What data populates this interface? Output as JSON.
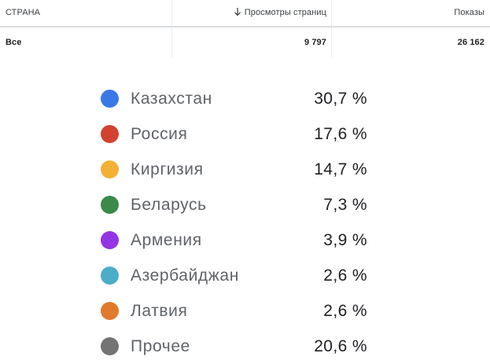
{
  "table": {
    "columns": {
      "country": "СТРАНА",
      "views": "Просмотры страниц",
      "impressions": "Показы"
    },
    "sort_icon": "arrow-down-icon",
    "total_row": {
      "country": "Все",
      "views": "9 797",
      "impressions": "26 162"
    }
  },
  "legend": {
    "items": [
      {
        "label": "Казахстан",
        "value": "30,7 %",
        "color": "#3b78e7"
      },
      {
        "label": "Россия",
        "value": "17,6 %",
        "color": "#d2422f"
      },
      {
        "label": "Киргизия",
        "value": "14,7 %",
        "color": "#f2b134"
      },
      {
        "label": "Беларусь",
        "value": "7,3 %",
        "color": "#3a8a48"
      },
      {
        "label": "Армения",
        "value": "3,9 %",
        "color": "#9335e4"
      },
      {
        "label": "Азербайджан",
        "value": "2,6 %",
        "color": "#4badc7"
      },
      {
        "label": "Латвия",
        "value": "2,6 %",
        "color": "#e07a2c"
      },
      {
        "label": "Прочее",
        "value": "20,6 %",
        "color": "#747474"
      }
    ]
  }
}
